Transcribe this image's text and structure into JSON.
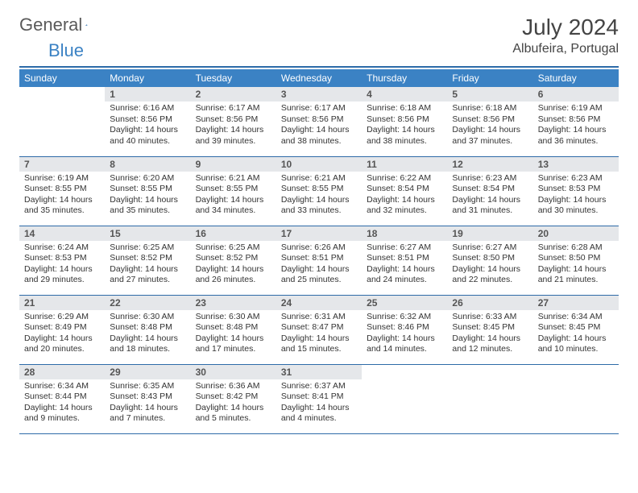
{
  "logo": {
    "text1": "General",
    "text2": "Blue"
  },
  "title": "July 2024",
  "location": "Albufeira, Portugal",
  "colors": {
    "header_bg": "#3b82c4",
    "rule": "#2e6ba8",
    "daynum_bg": "#e5e7ea",
    "text": "#333333",
    "logo_gray": "#5a5a5a",
    "logo_blue": "#3b82c4"
  },
  "weekdays": [
    "Sunday",
    "Monday",
    "Tuesday",
    "Wednesday",
    "Thursday",
    "Friday",
    "Saturday"
  ],
  "weeks": [
    [
      {
        "day": "",
        "lines": []
      },
      {
        "day": "1",
        "lines": [
          "Sunrise: 6:16 AM",
          "Sunset: 8:56 PM",
          "Daylight: 14 hours",
          "and 40 minutes."
        ]
      },
      {
        "day": "2",
        "lines": [
          "Sunrise: 6:17 AM",
          "Sunset: 8:56 PM",
          "Daylight: 14 hours",
          "and 39 minutes."
        ]
      },
      {
        "day": "3",
        "lines": [
          "Sunrise: 6:17 AM",
          "Sunset: 8:56 PM",
          "Daylight: 14 hours",
          "and 38 minutes."
        ]
      },
      {
        "day": "4",
        "lines": [
          "Sunrise: 6:18 AM",
          "Sunset: 8:56 PM",
          "Daylight: 14 hours",
          "and 38 minutes."
        ]
      },
      {
        "day": "5",
        "lines": [
          "Sunrise: 6:18 AM",
          "Sunset: 8:56 PM",
          "Daylight: 14 hours",
          "and 37 minutes."
        ]
      },
      {
        "day": "6",
        "lines": [
          "Sunrise: 6:19 AM",
          "Sunset: 8:56 PM",
          "Daylight: 14 hours",
          "and 36 minutes."
        ]
      }
    ],
    [
      {
        "day": "7",
        "lines": [
          "Sunrise: 6:19 AM",
          "Sunset: 8:55 PM",
          "Daylight: 14 hours",
          "and 35 minutes."
        ]
      },
      {
        "day": "8",
        "lines": [
          "Sunrise: 6:20 AM",
          "Sunset: 8:55 PM",
          "Daylight: 14 hours",
          "and 35 minutes."
        ]
      },
      {
        "day": "9",
        "lines": [
          "Sunrise: 6:21 AM",
          "Sunset: 8:55 PM",
          "Daylight: 14 hours",
          "and 34 minutes."
        ]
      },
      {
        "day": "10",
        "lines": [
          "Sunrise: 6:21 AM",
          "Sunset: 8:55 PM",
          "Daylight: 14 hours",
          "and 33 minutes."
        ]
      },
      {
        "day": "11",
        "lines": [
          "Sunrise: 6:22 AM",
          "Sunset: 8:54 PM",
          "Daylight: 14 hours",
          "and 32 minutes."
        ]
      },
      {
        "day": "12",
        "lines": [
          "Sunrise: 6:23 AM",
          "Sunset: 8:54 PM",
          "Daylight: 14 hours",
          "and 31 minutes."
        ]
      },
      {
        "day": "13",
        "lines": [
          "Sunrise: 6:23 AM",
          "Sunset: 8:53 PM",
          "Daylight: 14 hours",
          "and 30 minutes."
        ]
      }
    ],
    [
      {
        "day": "14",
        "lines": [
          "Sunrise: 6:24 AM",
          "Sunset: 8:53 PM",
          "Daylight: 14 hours",
          "and 29 minutes."
        ]
      },
      {
        "day": "15",
        "lines": [
          "Sunrise: 6:25 AM",
          "Sunset: 8:52 PM",
          "Daylight: 14 hours",
          "and 27 minutes."
        ]
      },
      {
        "day": "16",
        "lines": [
          "Sunrise: 6:25 AM",
          "Sunset: 8:52 PM",
          "Daylight: 14 hours",
          "and 26 minutes."
        ]
      },
      {
        "day": "17",
        "lines": [
          "Sunrise: 6:26 AM",
          "Sunset: 8:51 PM",
          "Daylight: 14 hours",
          "and 25 minutes."
        ]
      },
      {
        "day": "18",
        "lines": [
          "Sunrise: 6:27 AM",
          "Sunset: 8:51 PM",
          "Daylight: 14 hours",
          "and 24 minutes."
        ]
      },
      {
        "day": "19",
        "lines": [
          "Sunrise: 6:27 AM",
          "Sunset: 8:50 PM",
          "Daylight: 14 hours",
          "and 22 minutes."
        ]
      },
      {
        "day": "20",
        "lines": [
          "Sunrise: 6:28 AM",
          "Sunset: 8:50 PM",
          "Daylight: 14 hours",
          "and 21 minutes."
        ]
      }
    ],
    [
      {
        "day": "21",
        "lines": [
          "Sunrise: 6:29 AM",
          "Sunset: 8:49 PM",
          "Daylight: 14 hours",
          "and 20 minutes."
        ]
      },
      {
        "day": "22",
        "lines": [
          "Sunrise: 6:30 AM",
          "Sunset: 8:48 PM",
          "Daylight: 14 hours",
          "and 18 minutes."
        ]
      },
      {
        "day": "23",
        "lines": [
          "Sunrise: 6:30 AM",
          "Sunset: 8:48 PM",
          "Daylight: 14 hours",
          "and 17 minutes."
        ]
      },
      {
        "day": "24",
        "lines": [
          "Sunrise: 6:31 AM",
          "Sunset: 8:47 PM",
          "Daylight: 14 hours",
          "and 15 minutes."
        ]
      },
      {
        "day": "25",
        "lines": [
          "Sunrise: 6:32 AM",
          "Sunset: 8:46 PM",
          "Daylight: 14 hours",
          "and 14 minutes."
        ]
      },
      {
        "day": "26",
        "lines": [
          "Sunrise: 6:33 AM",
          "Sunset: 8:45 PM",
          "Daylight: 14 hours",
          "and 12 minutes."
        ]
      },
      {
        "day": "27",
        "lines": [
          "Sunrise: 6:34 AM",
          "Sunset: 8:45 PM",
          "Daylight: 14 hours",
          "and 10 minutes."
        ]
      }
    ],
    [
      {
        "day": "28",
        "lines": [
          "Sunrise: 6:34 AM",
          "Sunset: 8:44 PM",
          "Daylight: 14 hours",
          "and 9 minutes."
        ]
      },
      {
        "day": "29",
        "lines": [
          "Sunrise: 6:35 AM",
          "Sunset: 8:43 PM",
          "Daylight: 14 hours",
          "and 7 minutes."
        ]
      },
      {
        "day": "30",
        "lines": [
          "Sunrise: 6:36 AM",
          "Sunset: 8:42 PM",
          "Daylight: 14 hours",
          "and 5 minutes."
        ]
      },
      {
        "day": "31",
        "lines": [
          "Sunrise: 6:37 AM",
          "Sunset: 8:41 PM",
          "Daylight: 14 hours",
          "and 4 minutes."
        ]
      },
      {
        "day": "",
        "lines": []
      },
      {
        "day": "",
        "lines": []
      },
      {
        "day": "",
        "lines": []
      }
    ]
  ]
}
